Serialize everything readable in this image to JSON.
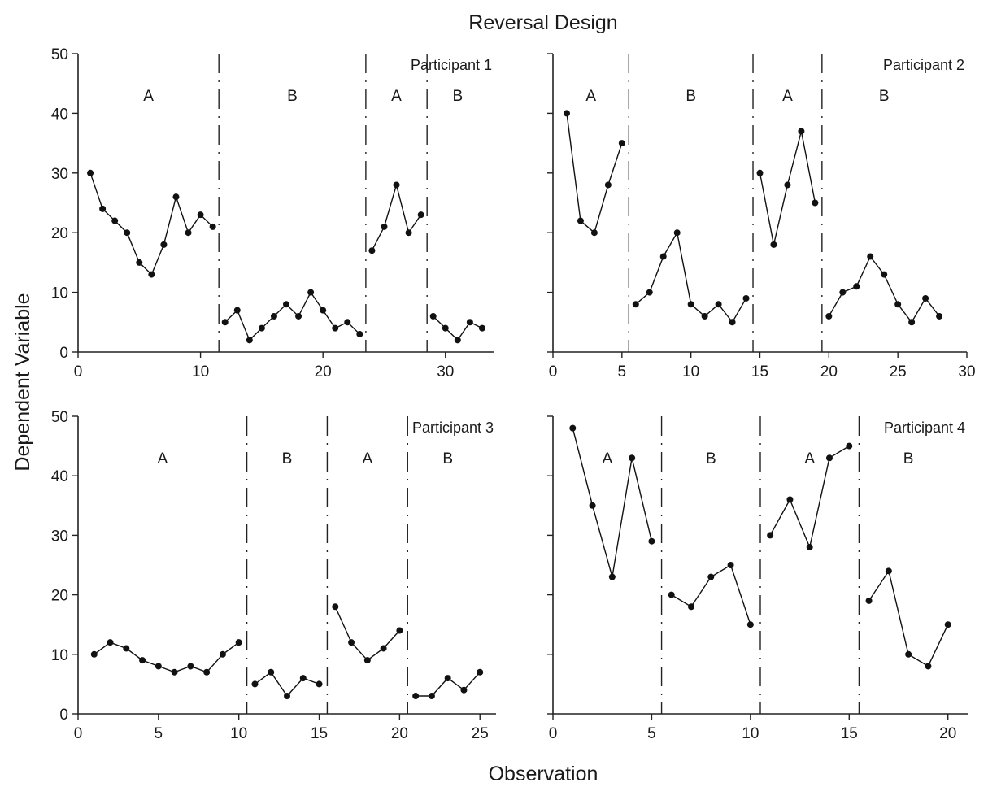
{
  "figure": {
    "title": "Reversal Design",
    "xlabel": "Observation",
    "ylabel": "Dependent Variable"
  },
  "chart_data": [
    {
      "type": "line",
      "title": "Participant 1",
      "xlim": [
        0,
        34
      ],
      "ylim": [
        0,
        50
      ],
      "xticks": [
        0,
        10,
        20,
        30
      ],
      "yticks": [
        0,
        10,
        20,
        30,
        40,
        50
      ],
      "show_y_tick_labels": true,
      "phases": [
        "A",
        "B",
        "A",
        "B"
      ],
      "phase_changes": [
        11.5,
        23.5,
        28.5
      ],
      "segments": [
        {
          "x": [
            1,
            2,
            3,
            4,
            5,
            6,
            7,
            8,
            9,
            10,
            11
          ],
          "y": [
            30,
            24,
            22,
            20,
            15,
            13,
            18,
            26,
            20,
            23,
            21
          ]
        },
        {
          "x": [
            12,
            13,
            14,
            15,
            16,
            17,
            18,
            19,
            20,
            21,
            22,
            23
          ],
          "y": [
            5,
            7,
            2,
            4,
            6,
            8,
            6,
            10,
            7,
            4,
            5,
            3
          ]
        },
        {
          "x": [
            24,
            25,
            26,
            27,
            28
          ],
          "y": [
            17,
            21,
            28,
            20,
            23
          ]
        },
        {
          "x": [
            29,
            30,
            31,
            32,
            33
          ],
          "y": [
            6,
            4,
            2,
            5,
            4
          ]
        }
      ]
    },
    {
      "type": "line",
      "title": "Participant 2",
      "xlim": [
        0,
        30
      ],
      "ylim": [
        0,
        50
      ],
      "xticks": [
        0,
        5,
        10,
        15,
        20,
        25,
        30
      ],
      "yticks": [
        0,
        10,
        20,
        30,
        40,
        50
      ],
      "show_y_tick_labels": false,
      "phases": [
        "A",
        "B",
        "A",
        "B"
      ],
      "phase_changes": [
        5.5,
        14.5,
        19.5
      ],
      "segments": [
        {
          "x": [
            1,
            2,
            3,
            4,
            5
          ],
          "y": [
            40,
            22,
            20,
            28,
            35
          ]
        },
        {
          "x": [
            6,
            7,
            8,
            9,
            10,
            11,
            12,
            13,
            14
          ],
          "y": [
            8,
            10,
            16,
            20,
            8,
            6,
            8,
            5,
            9
          ]
        },
        {
          "x": [
            15,
            16,
            17,
            18,
            19
          ],
          "y": [
            30,
            18,
            28,
            37,
            25
          ]
        },
        {
          "x": [
            20,
            21,
            22,
            23,
            24,
            25,
            26,
            27,
            28
          ],
          "y": [
            6,
            10,
            11,
            16,
            13,
            8,
            5,
            9,
            6
          ]
        }
      ]
    },
    {
      "type": "line",
      "title": "Participant 3",
      "xlim": [
        0,
        26
      ],
      "ylim": [
        0,
        50
      ],
      "xticks": [
        0,
        5,
        10,
        15,
        20,
        25
      ],
      "yticks": [
        0,
        10,
        20,
        30,
        40,
        50
      ],
      "show_y_tick_labels": true,
      "phases": [
        "A",
        "B",
        "A",
        "B"
      ],
      "phase_changes": [
        10.5,
        15.5,
        20.5
      ],
      "segments": [
        {
          "x": [
            1,
            2,
            3,
            4,
            5,
            6,
            7,
            8,
            9,
            10
          ],
          "y": [
            10,
            12,
            11,
            9,
            8,
            7,
            8,
            7,
            10,
            12
          ]
        },
        {
          "x": [
            11,
            12,
            13,
            14,
            15
          ],
          "y": [
            5,
            7,
            3,
            6,
            5
          ]
        },
        {
          "x": [
            16,
            17,
            18,
            19,
            20
          ],
          "y": [
            18,
            12,
            9,
            11,
            14
          ]
        },
        {
          "x": [
            21,
            22,
            23,
            24,
            25
          ],
          "y": [
            3,
            3,
            6,
            4,
            7
          ]
        }
      ]
    },
    {
      "type": "line",
      "title": "Participant 4",
      "xlim": [
        0,
        21
      ],
      "ylim": [
        0,
        50
      ],
      "xticks": [
        0,
        5,
        10,
        15,
        20
      ],
      "yticks": [
        0,
        10,
        20,
        30,
        40,
        50
      ],
      "show_y_tick_labels": false,
      "phases": [
        "A",
        "B",
        "A",
        "B"
      ],
      "phase_changes": [
        5.5,
        10.5,
        15.5
      ],
      "segments": [
        {
          "x": [
            1,
            2,
            3,
            4,
            5
          ],
          "y": [
            48,
            35,
            23,
            43,
            29
          ]
        },
        {
          "x": [
            6,
            7,
            8,
            9,
            10
          ],
          "y": [
            20,
            18,
            23,
            25,
            15
          ]
        },
        {
          "x": [
            11,
            12,
            13,
            14,
            15
          ],
          "y": [
            30,
            36,
            28,
            43,
            45
          ]
        },
        {
          "x": [
            16,
            17,
            18,
            19,
            20
          ],
          "y": [
            19,
            24,
            10,
            8,
            15
          ]
        }
      ]
    }
  ]
}
